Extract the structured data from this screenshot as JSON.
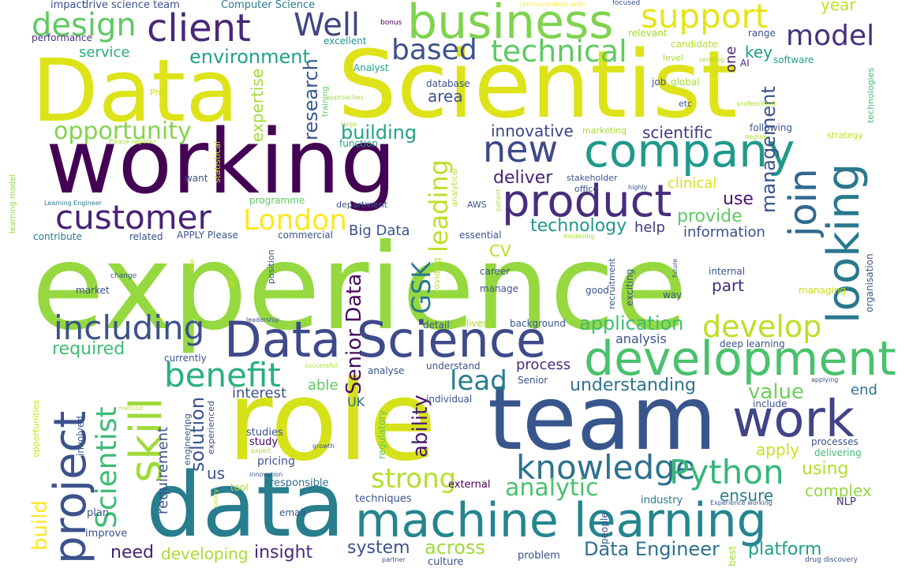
{
  "words": [
    {
      "text": "experience",
      "color": "#95d840"
    },
    {
      "text": "role",
      "color": "#d5e21a"
    },
    {
      "text": "team",
      "color": "#39568c"
    },
    {
      "text": "Data",
      "color": "#dde318"
    },
    {
      "text": "Scientist",
      "color": "#dde318"
    },
    {
      "text": "working",
      "color": "#440154"
    },
    {
      "text": "data",
      "color": "#287d8e"
    },
    {
      "text": "machine learning",
      "color": "#25858e"
    },
    {
      "text": "Data Science",
      "color": "#3e4a89"
    },
    {
      "text": "development",
      "color": "#4ac16d"
    },
    {
      "text": "business",
      "color": "#7fd34e"
    },
    {
      "text": "company",
      "color": "#1f9a8a"
    },
    {
      "text": "work",
      "color": "#414487"
    },
    {
      "text": "product",
      "color": "#472d7b"
    },
    {
      "text": "looking",
      "color": "#2a788e"
    },
    {
      "text": "project",
      "color": "#3b528b"
    },
    {
      "text": "skill",
      "color": "#9fda3a"
    },
    {
      "text": "client",
      "color": "#482878"
    },
    {
      "text": "support",
      "color": "#e5e419"
    },
    {
      "text": "new",
      "color": "#3e4989"
    },
    {
      "text": "customer",
      "color": "#482173"
    },
    {
      "text": "design",
      "color": "#5ec962"
    },
    {
      "text": "knowledge",
      "color": "#2c728e"
    },
    {
      "text": "Python",
      "color": "#35b779"
    },
    {
      "text": "including",
      "color": "#3b528b"
    },
    {
      "text": "benefit",
      "color": "#29af7f"
    },
    {
      "text": "join",
      "color": "#31688e"
    },
    {
      "text": "London",
      "color": "#fde725"
    },
    {
      "text": "technical",
      "color": "#5ec962"
    },
    {
      "text": "based",
      "color": "#3b528b"
    },
    {
      "text": "model",
      "color": "#46327e"
    },
    {
      "text": "Well",
      "color": "#414487"
    },
    {
      "text": "develop",
      "color": "#bddf26"
    },
    {
      "text": "Scientist",
      "color": "#3dbc74"
    },
    {
      "text": "strong",
      "color": "#b5de2b"
    },
    {
      "text": "leading",
      "color": "#bddf26"
    },
    {
      "text": "lead",
      "color": "#287c8e"
    },
    {
      "text": "GSK",
      "color": "#2a788e"
    },
    {
      "text": "Senior Data",
      "color": "#460a5d"
    },
    {
      "text": "ability",
      "color": "#481a6c"
    },
    {
      "text": "opportunity",
      "color": "#84d44b"
    },
    {
      "text": "analytic",
      "color": "#4ac16d"
    },
    {
      "text": "Data Engineer",
      "color": "#2d708e"
    },
    {
      "text": "build",
      "color": "#fde725"
    },
    {
      "text": "application",
      "color": "#3dbc74"
    },
    {
      "text": "value",
      "color": "#6ece58"
    },
    {
      "text": "solution",
      "color": "#3b528b"
    },
    {
      "text": "research",
      "color": "#39558c"
    },
    {
      "text": "management",
      "color": "#3b528b"
    },
    {
      "text": "environment",
      "color": "#20a386"
    },
    {
      "text": "building",
      "color": "#20a386"
    },
    {
      "text": "understanding",
      "color": "#2c728e"
    },
    {
      "text": "deliver",
      "color": "#482475"
    },
    {
      "text": "innovative",
      "color": "#414487"
    },
    {
      "text": "scientific",
      "color": "#453781"
    },
    {
      "text": "provide",
      "color": "#5ec962"
    },
    {
      "text": "technology",
      "color": "#1f968b"
    },
    {
      "text": "information",
      "color": "#3b528b"
    },
    {
      "text": "use",
      "color": "#481467"
    },
    {
      "text": "expertise",
      "color": "#a2da37"
    },
    {
      "text": "required",
      "color": "#3fbc73"
    },
    {
      "text": "across",
      "color": "#a0da39"
    },
    {
      "text": "system",
      "color": "#3b528b"
    },
    {
      "text": "platform",
      "color": "#1f9f88"
    },
    {
      "text": "insight",
      "color": "#482878"
    },
    {
      "text": "developing",
      "color": "#addc30"
    },
    {
      "text": "need",
      "color": "#481f70"
    },
    {
      "text": "using",
      "color": "#b5de2b"
    },
    {
      "text": "complex",
      "color": "#95d840"
    },
    {
      "text": "ensure",
      "color": "#287d8e"
    },
    {
      "text": "apply",
      "color": "#cae11f"
    },
    {
      "text": "help",
      "color": "#453781"
    },
    {
      "text": "interest",
      "color": "#3b528b"
    },
    {
      "text": "able",
      "color": "#5ec962"
    },
    {
      "text": "process",
      "color": "#472d7b"
    },
    {
      "text": "end",
      "color": "#2c728e"
    },
    {
      "text": "service",
      "color": "#29af7f"
    },
    {
      "text": "area",
      "color": "#3b528b"
    },
    {
      "text": "key",
      "color": "#1f9e89"
    },
    {
      "text": "clinical",
      "color": "#d8e219"
    },
    {
      "text": "CV",
      "color": "#b8de29"
    },
    {
      "text": "Big Data",
      "color": "#3b528b"
    },
    {
      "text": "part",
      "color": "#472a7a"
    },
    {
      "text": "analysis",
      "color": "#3b528b"
    },
    {
      "text": "requirement",
      "color": "#3b528b"
    },
    {
      "text": "us",
      "color": "#3b528b"
    },
    {
      "text": "year",
      "color": "#c2df23"
    },
    {
      "text": "one",
      "color": "#482878"
    },
    {
      "text": "UK",
      "color": "#31688e"
    },
    {
      "text": "pricing",
      "color": "#3b528b"
    },
    {
      "text": "study",
      "color": "#440154"
    },
    {
      "text": "studies",
      "color": "#3b528b"
    },
    {
      "text": "responsible",
      "color": "#2c728e"
    },
    {
      "text": "external",
      "color": "#440154"
    },
    {
      "text": "techniques",
      "color": "#3b528b"
    },
    {
      "text": "industry",
      "color": "#2a788e"
    },
    {
      "text": "NLP",
      "color": "#472d7b"
    },
    {
      "text": "plan",
      "color": "#3b528b"
    },
    {
      "text": "improve",
      "color": "#3b528b"
    },
    {
      "text": "email",
      "color": "#3b528b"
    },
    {
      "text": "problem",
      "color": "#3b528b"
    },
    {
      "text": "culture",
      "color": "#3b528b"
    },
    {
      "text": "best",
      "color": "#a8db34"
    },
    {
      "text": "people",
      "color": "#3b528b"
    },
    {
      "text": "drive science team",
      "color": "#3b528b"
    },
    {
      "text": "impact",
      "color": "#3b528b"
    },
    {
      "text": "Computer Science",
      "color": "#2a788e"
    },
    {
      "text": "performance",
      "color": "#472d7b"
    },
    {
      "text": "excellent",
      "color": "#1f968b"
    },
    {
      "text": "bonus",
      "color": "#440154"
    },
    {
      "text": "communication skills",
      "color": "#fde725"
    },
    {
      "text": "focused",
      "color": "#3b528b"
    },
    {
      "text": "relevant",
      "color": "#a8db34"
    },
    {
      "text": "range",
      "color": "#3b528b"
    },
    {
      "text": "candidate",
      "color": "#b5de2b"
    },
    {
      "text": "level",
      "color": "#a8db34"
    },
    {
      "text": "sending",
      "color": "#a8db34"
    },
    {
      "text": "AI",
      "color": "#482878"
    },
    {
      "text": "software",
      "color": "#1f9e89"
    },
    {
      "text": "Analyst",
      "color": "#20a386"
    },
    {
      "text": "database",
      "color": "#3b528b"
    },
    {
      "text": "job",
      "color": "#3b528b"
    },
    {
      "text": "global",
      "color": "#a8db34"
    },
    {
      "text": "etc",
      "color": "#3b528b"
    },
    {
      "text": "professional",
      "color": "#a8db34"
    },
    {
      "text": "technologies",
      "color": "#3dbc74"
    },
    {
      "text": "strategy",
      "color": "#cae11f"
    },
    {
      "text": "degree",
      "color": "#b5de2b"
    },
    {
      "text": "following",
      "color": "#3b528b"
    },
    {
      "text": "marketing",
      "color": "#a8db34"
    },
    {
      "text": "stakeholder",
      "color": "#3b528b"
    },
    {
      "text": "office",
      "color": "#3b528b"
    },
    {
      "text": "highly",
      "color": "#3b528b"
    },
    {
      "text": "PhD",
      "color": "#cae11f"
    },
    {
      "text": "training",
      "color": "#5ec962"
    },
    {
      "text": "approaches",
      "color": "#a8db34"
    },
    {
      "text": "large",
      "color": "#a8db34"
    },
    {
      "text": "function",
      "color": "#20a386"
    },
    {
      "text": "Please register",
      "color": "#a8db34"
    },
    {
      "text": "statistical",
      "color": "#cae11f"
    },
    {
      "text": "want",
      "color": "#3b528b"
    },
    {
      "text": "learning model",
      "color": "#95d840"
    },
    {
      "text": "Learning Engineer",
      "color": "#2a788e"
    },
    {
      "text": "programme",
      "color": "#5ec962"
    },
    {
      "text": "department",
      "color": "#3b528b"
    },
    {
      "text": "analytical",
      "color": "#b5de2b"
    },
    {
      "text": "AWS",
      "color": "#3b528b"
    },
    {
      "text": "patient",
      "color": "#a8db34"
    },
    {
      "text": "contribute",
      "color": "#2a788e"
    },
    {
      "text": "related",
      "color": "#3b528b"
    },
    {
      "text": "APPLY Please",
      "color": "#3b528b"
    },
    {
      "text": "commercial",
      "color": "#3b528b"
    },
    {
      "text": "essential",
      "color": "#3b528b"
    },
    {
      "text": "modelling",
      "color": "#a8db34"
    },
    {
      "text": "site",
      "color": "#cae11f"
    },
    {
      "text": "change",
      "color": "#3b528b"
    },
    {
      "text": "market",
      "color": "#3b528b"
    },
    {
      "text": "SQL",
      "color": "#cae11f"
    },
    {
      "text": "position",
      "color": "#3b528b"
    },
    {
      "text": "providing",
      "color": "#b5de2b"
    },
    {
      "text": "career",
      "color": "#3b528b"
    },
    {
      "text": "manage",
      "color": "#3b528b"
    },
    {
      "text": "good",
      "color": "#3b528b"
    },
    {
      "text": "recruitment",
      "color": "#3b528b"
    },
    {
      "text": "exciting",
      "color": "#3b528b"
    },
    {
      "text": "future",
      "color": "#3b528b"
    },
    {
      "text": "internal",
      "color": "#3b528b"
    },
    {
      "text": "way",
      "color": "#3b528b"
    },
    {
      "text": "managing",
      "color": "#cae11f"
    },
    {
      "text": "organisation",
      "color": "#3b528b"
    },
    {
      "text": "leadership",
      "color": "#3b528b"
    },
    {
      "text": "detail",
      "color": "#3b528b"
    },
    {
      "text": "delivery",
      "color": "#a8db34"
    },
    {
      "text": "background",
      "color": "#3b528b"
    },
    {
      "text": "deep learning",
      "color": "#3b528b"
    },
    {
      "text": "currently",
      "color": "#3b528b"
    },
    {
      "text": "successful",
      "color": "#a8db34"
    },
    {
      "text": "analyse",
      "color": "#3b528b"
    },
    {
      "text": "understand",
      "color": "#3b528b"
    },
    {
      "text": "applying",
      "color": "#3b528b"
    },
    {
      "text": "Senior",
      "color": "#3b528b"
    },
    {
      "text": "include",
      "color": "#3b528b"
    },
    {
      "text": "opportunities",
      "color": "#cae11f"
    },
    {
      "text": "involved",
      "color": "#3b528b"
    },
    {
      "text": "method",
      "color": "#cae11f"
    },
    {
      "text": "engineering",
      "color": "#3b528b"
    },
    {
      "text": "experienced",
      "color": "#3b528b"
    },
    {
      "text": "individual",
      "color": "#3b528b"
    },
    {
      "text": "regulatory",
      "color": "#5ec962"
    },
    {
      "text": "expert",
      "color": "#a8db34"
    },
    {
      "text": "growth",
      "color": "#3b528b"
    },
    {
      "text": "processes",
      "color": "#3b528b"
    },
    {
      "text": "delivering",
      "color": "#3dbc74"
    },
    {
      "text": "innovation",
      "color": "#3b528b"
    },
    {
      "text": "tool",
      "color": "#a8db34"
    },
    {
      "text": "salary",
      "color": "#cae11f"
    },
    {
      "text": "Experience working",
      "color": "#3b528b"
    },
    {
      "text": "partner",
      "color": "#3b528b"
    },
    {
      "text": "drug discovery",
      "color": "#3b528b"
    }
  ]
}
